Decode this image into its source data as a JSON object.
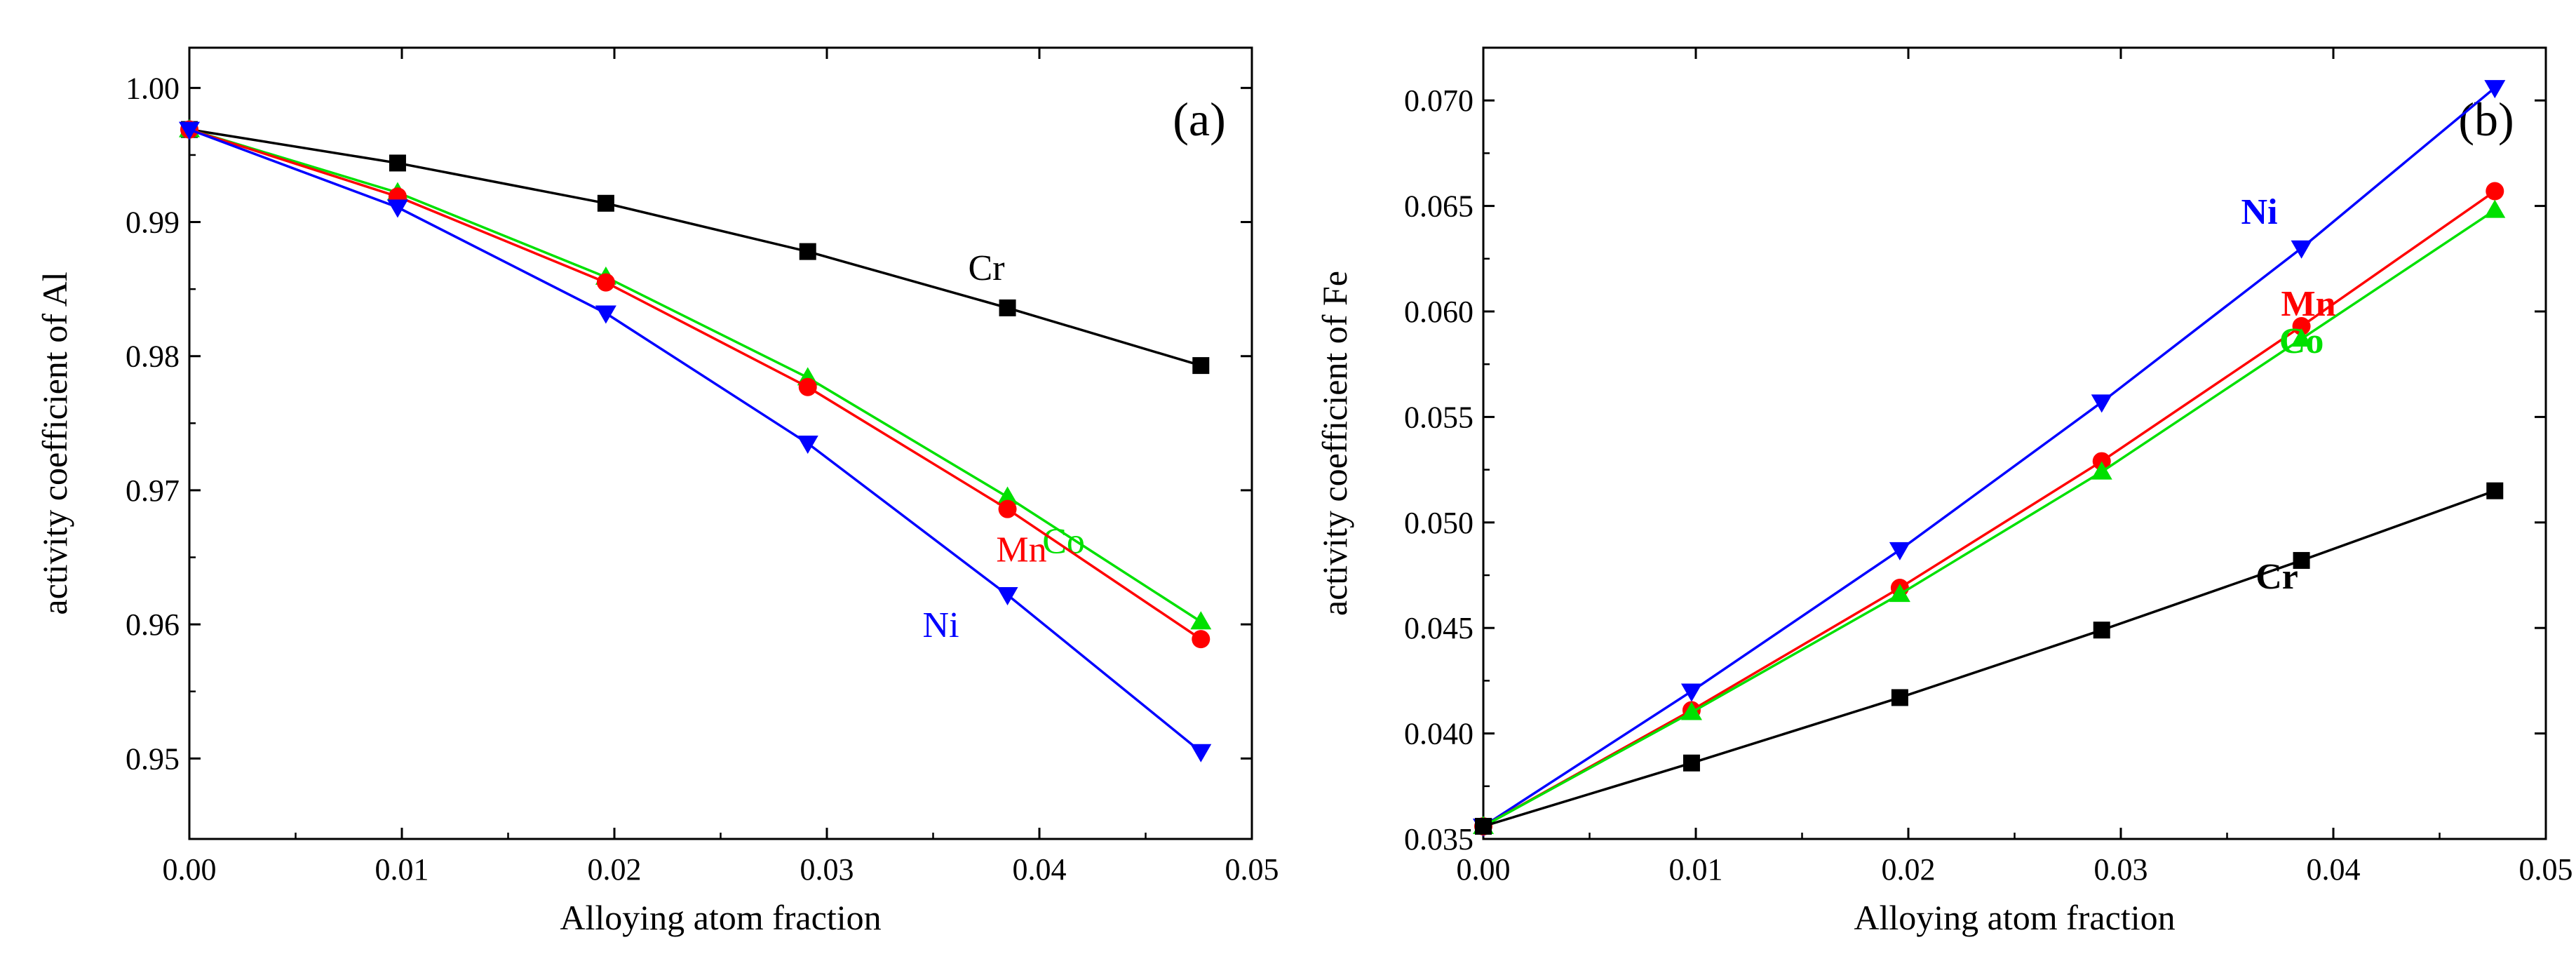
{
  "chart_data": [
    {
      "type": "line",
      "panel": "(a)",
      "xlabel": "Alloying atom fraction",
      "ylabel": "activity coefficient of Al",
      "xlim": [
        0.0,
        0.05
      ],
      "ylim": [
        0.944,
        1.003
      ],
      "xticks": [
        0.0,
        0.01,
        0.02,
        0.03,
        0.04,
        0.05
      ],
      "xtick_labels": [
        "0.00",
        "0.01",
        "0.02",
        "0.03",
        "0.04",
        "0.05"
      ],
      "yticks": [
        0.95,
        0.96,
        0.97,
        0.98,
        0.99,
        1.0
      ],
      "ytick_labels": [
        "0.95",
        "0.96",
        "0.97",
        "0.98",
        "0.99",
        "1.00"
      ],
      "grid": false,
      "series": [
        {
          "name": "Cr",
          "color": "#000000",
          "marker": "square",
          "label_bold": false,
          "label_anchor_index": 4,
          "label_offset": "upper-right",
          "x": [
            0.0,
            0.0098,
            0.0196,
            0.0291,
            0.0385,
            0.0476
          ],
          "y": [
            0.9969,
            0.9944,
            0.9914,
            0.9878,
            0.9836,
            0.9793
          ]
        },
        {
          "name": "Co",
          "color": "#00e000",
          "marker": "triangle-up",
          "label_bold": false,
          "label_anchor_index": 4,
          "label_offset": "lower-right",
          "x": [
            0.0,
            0.0098,
            0.0196,
            0.0291,
            0.0385,
            0.0476
          ],
          "y": [
            0.9969,
            0.9922,
            0.9859,
            0.9784,
            0.9695,
            0.9602
          ]
        },
        {
          "name": "Mn",
          "color": "#ff0000",
          "marker": "circle",
          "label_bold": false,
          "label_anchor_index": 4,
          "label_offset": "lower-left",
          "x": [
            0.0,
            0.0098,
            0.0196,
            0.0291,
            0.0385,
            0.0476
          ],
          "y": [
            0.9969,
            0.9919,
            0.9855,
            0.9777,
            0.9686,
            0.9589
          ]
        },
        {
          "name": "Ni",
          "color": "#0000ff",
          "marker": "triangle-down",
          "label_bold": false,
          "label_anchor_index": 4,
          "label_offset": "lower-left",
          "x": [
            0.0,
            0.0098,
            0.0196,
            0.0291,
            0.0385,
            0.0476
          ],
          "y": [
            0.9969,
            0.9911,
            0.9832,
            0.9735,
            0.9622,
            0.9505
          ]
        }
      ]
    },
    {
      "type": "line",
      "panel": "(b)",
      "xlabel": "Alloying atom fraction",
      "ylabel": "activity coefficient of Fe",
      "xlim": [
        0.0,
        0.05
      ],
      "ylim": [
        0.035,
        0.0725
      ],
      "xticks": [
        0.0,
        0.01,
        0.02,
        0.03,
        0.04,
        0.05
      ],
      "xtick_labels": [
        "0.00",
        "0.01",
        "0.02",
        "0.03",
        "0.04",
        "0.05"
      ],
      "yticks": [
        0.035,
        0.04,
        0.045,
        0.05,
        0.055,
        0.06,
        0.065,
        0.07
      ],
      "ytick_labels": [
        "0.035",
        "0.040",
        "0.045",
        "0.050",
        "0.055",
        "0.060",
        "0.065",
        "0.070"
      ],
      "grid": false,
      "series": [
        {
          "name": "Ni",
          "color": "#0000ff",
          "marker": "triangle-down",
          "label_bold": true,
          "label_anchor_index": 4,
          "label_offset": "upper-left",
          "x": [
            0.0,
            0.0098,
            0.0196,
            0.0291,
            0.0385,
            0.0476
          ],
          "y": [
            0.0356,
            0.042,
            0.0487,
            0.0557,
            0.063,
            0.0706
          ]
        },
        {
          "name": "Mn",
          "color": "#ff0000",
          "marker": "circle",
          "label_bold": true,
          "label_anchor_index": 4,
          "label_offset": "upper-right",
          "x": [
            0.0,
            0.0098,
            0.0196,
            0.0291,
            0.0385,
            0.0476
          ],
          "y": [
            0.0356,
            0.0411,
            0.0469,
            0.0529,
            0.0593,
            0.0657
          ]
        },
        {
          "name": "Co",
          "color": "#00e000",
          "marker": "triangle-up",
          "label_bold": true,
          "label_anchor_index": 4,
          "label_offset": "lower-right",
          "x": [
            0.0,
            0.0098,
            0.0196,
            0.0291,
            0.0385,
            0.0476
          ],
          "y": [
            0.0356,
            0.041,
            0.0466,
            0.0524,
            0.0587,
            0.0648
          ]
        },
        {
          "name": "Cr",
          "color": "#000000",
          "marker": "square",
          "label_bold": true,
          "label_anchor_index": 4,
          "label_offset": "lower-right",
          "x": [
            0.0,
            0.0098,
            0.0196,
            0.0291,
            0.0385,
            0.0476
          ],
          "y": [
            0.0356,
            0.0386,
            0.0417,
            0.0449,
            0.0482,
            0.0515
          ]
        }
      ]
    }
  ]
}
